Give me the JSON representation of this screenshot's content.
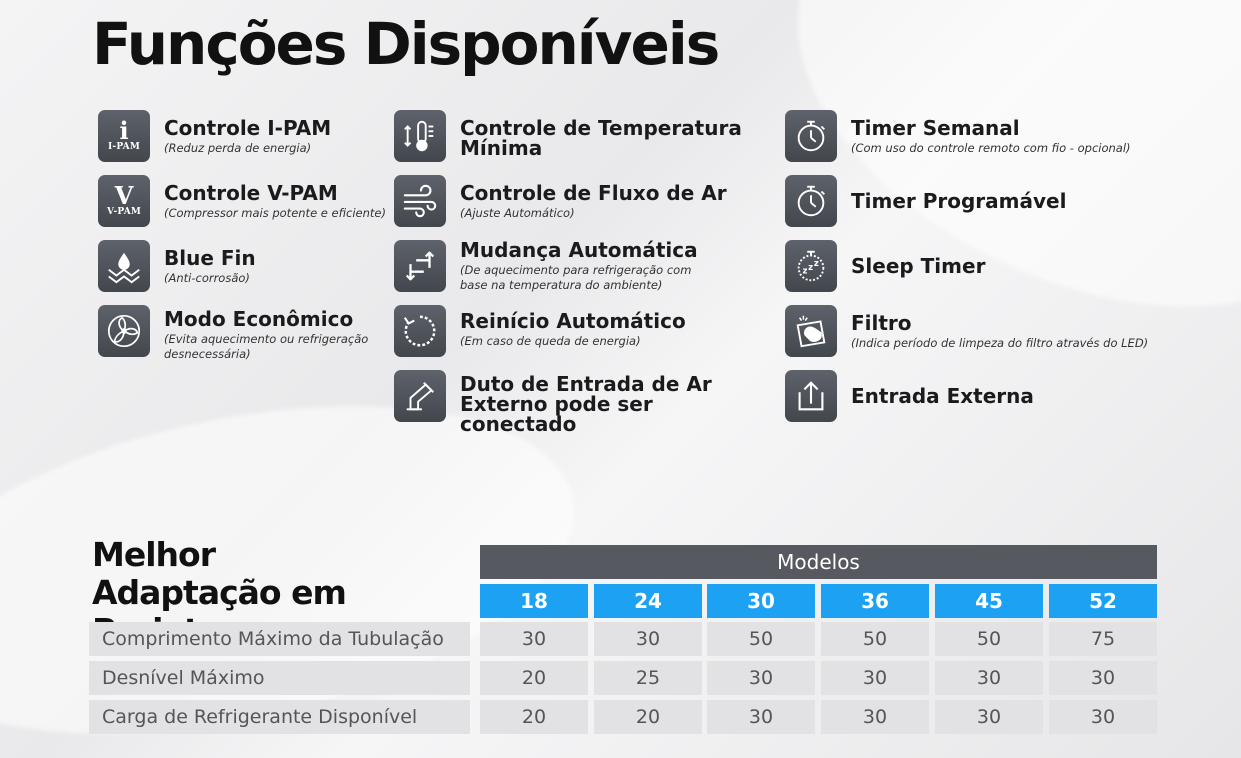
{
  "title": "Funções Disponíveis",
  "features": [
    {
      "id": "i-pam",
      "title": "Controle I-PAM",
      "subtitle": "(Reduz perda de energia)",
      "icon": "i-pam-icon",
      "icon_big": "i",
      "icon_small": "I-PAM"
    },
    {
      "id": "v-pam",
      "title": "Controle V-PAM",
      "subtitle": "(Compressor mais potente e eficiente)",
      "icon": "v-pam-icon",
      "icon_big": "V",
      "icon_small": "V-PAM"
    },
    {
      "id": "blue-fin",
      "title": "Blue Fin",
      "subtitle": "(Anti-corrosão)",
      "icon": "blue-fin-icon"
    },
    {
      "id": "modo-economico",
      "title": "Modo Econômico",
      "subtitle": "(Evita aquecimento ou refrigeração desnecessária)",
      "icon": "fan-icon"
    },
    {
      "id": "temp-minima",
      "title": "Controle de Temperatura Mínima",
      "subtitle": "",
      "icon": "thermometer-icon"
    },
    {
      "id": "fluxo-ar",
      "title": "Controle de Fluxo de Ar",
      "subtitle": "(Ajuste Automático)",
      "icon": "wind-icon"
    },
    {
      "id": "mudanca-auto",
      "title": "Mudança Automática",
      "subtitle": "(De aquecimento para refrigeração com base na temperatura do ambiente)",
      "icon": "switch-arrows-icon"
    },
    {
      "id": "reinicio-auto",
      "title": "Reinício Automático",
      "subtitle": "(Em caso de queda de energia)",
      "icon": "restart-icon"
    },
    {
      "id": "duto-entrada",
      "title": "Duto de Entrada de Ar Externo pode ser conectado",
      "subtitle": "",
      "icon": "duct-icon"
    },
    {
      "id": "timer-semanal",
      "title": "Timer Semanal",
      "subtitle": "(Com uso do controle remoto com fio - opcional)",
      "icon": "stopwatch-icon"
    },
    {
      "id": "timer-programavel",
      "title": "Timer Programável",
      "subtitle": "",
      "icon": "stopwatch-icon"
    },
    {
      "id": "sleep-timer",
      "title": "Sleep Timer",
      "subtitle": "",
      "icon": "sleep-timer-icon"
    },
    {
      "id": "filtro",
      "title": "Filtro",
      "subtitle": "(Indica período de limpeza do filtro através do LED)",
      "icon": "filter-cleaning-icon"
    },
    {
      "id": "entrada-externa",
      "title": "Entrada Externa",
      "subtitle": "",
      "icon": "external-input-icon"
    }
  ],
  "table": {
    "section_title": "Melhor Adaptação em Projetos",
    "header": "Modelos",
    "models": [
      "18",
      "24",
      "30",
      "36",
      "45",
      "52"
    ],
    "rows": [
      {
        "label": "Comprimento Máximo da Tubulação",
        "values": [
          "30",
          "30",
          "50",
          "50",
          "50",
          "75"
        ]
      },
      {
        "label": "Desnível Máximo",
        "values": [
          "20",
          "25",
          "30",
          "30",
          "30",
          "30"
        ]
      },
      {
        "label": "Carga de Refrigerante Disponível",
        "values": [
          "20",
          "20",
          "30",
          "30",
          "30",
          "30"
        ]
      }
    ]
  },
  "colors": {
    "accent": "#1da1f2",
    "header_bar": "#56595f",
    "icon_bg": "#4a4e55",
    "cell_bg": "#e2e2e4"
  }
}
